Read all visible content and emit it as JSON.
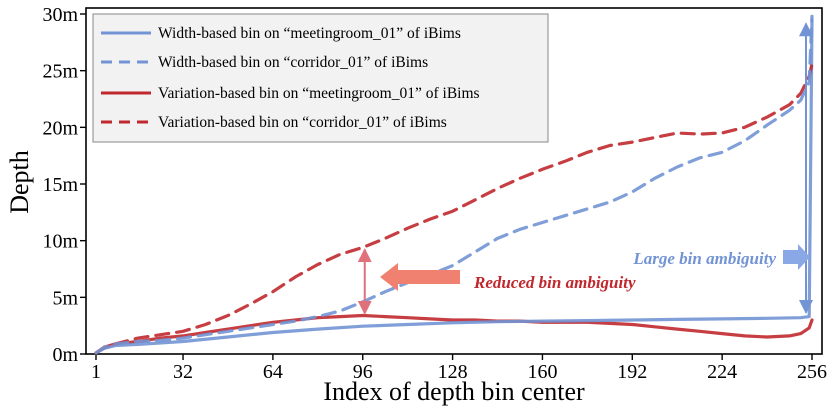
{
  "chart_data": {
    "type": "line",
    "xlabel": "Index of depth bin center",
    "ylabel": "Depth",
    "xlim": [
      1,
      256
    ],
    "ylim": [
      0,
      30
    ],
    "xticks": [
      1,
      32,
      64,
      96,
      128,
      160,
      192,
      224,
      256
    ],
    "yticks": [
      0,
      5,
      10,
      15,
      20,
      25,
      30
    ],
    "ytick_labels": [
      "0m",
      "5m",
      "10m",
      "15m",
      "20m",
      "25m",
      "30m"
    ],
    "legend_location": "top-left",
    "series": [
      {
        "name": "Width-based bin on “meetingroom_01” of iBims",
        "color": "#7294d4",
        "dashed": false,
        "x": [
          1,
          4,
          8,
          16,
          32,
          48,
          64,
          80,
          96,
          112,
          128,
          144,
          160,
          176,
          192,
          208,
          224,
          240,
          252,
          255,
          256
        ],
        "y": [
          0.1,
          0.5,
          0.75,
          0.85,
          1.1,
          1.5,
          1.9,
          2.2,
          2.45,
          2.6,
          2.75,
          2.85,
          2.9,
          2.95,
          3.0,
          3.05,
          3.1,
          3.15,
          3.2,
          3.3,
          29.5
        ]
      },
      {
        "name": "Width-based bin on “corridor_01” of iBims",
        "color": "#7294d4",
        "dashed": true,
        "x": [
          1,
          4,
          8,
          16,
          24,
          32,
          40,
          48,
          56,
          64,
          72,
          80,
          88,
          96,
          104,
          112,
          120,
          128,
          136,
          144,
          152,
          160,
          168,
          176,
          184,
          192,
          200,
          208,
          216,
          224,
          232,
          240,
          248,
          252,
          255,
          256
        ],
        "y": [
          0.1,
          0.6,
          0.9,
          1.1,
          1.2,
          1.4,
          1.7,
          2.0,
          2.3,
          2.6,
          2.9,
          3.3,
          3.8,
          4.6,
          5.5,
          6.3,
          7.0,
          7.8,
          9.0,
          10.2,
          11.0,
          11.6,
          12.2,
          12.8,
          13.4,
          14.3,
          15.5,
          16.5,
          17.3,
          17.8,
          18.8,
          20.2,
          21.5,
          22.4,
          24.0,
          29.8
        ]
      },
      {
        "name": "Variation-based bin on “meetingroom_01” of iBims",
        "color": "#c0282d",
        "dashed": false,
        "x": [
          1,
          4,
          8,
          16,
          24,
          32,
          40,
          48,
          56,
          64,
          72,
          80,
          88,
          96,
          104,
          112,
          120,
          128,
          136,
          144,
          152,
          160,
          168,
          176,
          184,
          192,
          200,
          208,
          216,
          224,
          232,
          240,
          248,
          252,
          255,
          256
        ],
        "y": [
          0.1,
          0.6,
          0.9,
          1.1,
          1.4,
          1.6,
          1.9,
          2.2,
          2.5,
          2.8,
          3.0,
          3.2,
          3.3,
          3.4,
          3.3,
          3.2,
          3.1,
          3.0,
          3.0,
          2.9,
          2.9,
          2.8,
          2.8,
          2.8,
          2.7,
          2.6,
          2.4,
          2.2,
          2.0,
          1.8,
          1.6,
          1.5,
          1.6,
          1.8,
          2.3,
          3.0
        ]
      },
      {
        "name": "Variation-based bin on “corridor_01” of iBims",
        "color": "#c0282d",
        "dashed": true,
        "x": [
          1,
          4,
          8,
          16,
          24,
          32,
          40,
          48,
          56,
          64,
          72,
          80,
          88,
          96,
          104,
          112,
          120,
          128,
          136,
          144,
          152,
          160,
          168,
          176,
          184,
          192,
          200,
          208,
          216,
          224,
          232,
          240,
          248,
          252,
          255,
          256
        ],
        "y": [
          0.1,
          0.6,
          0.9,
          1.4,
          1.7,
          2.0,
          2.6,
          3.4,
          4.4,
          5.5,
          6.8,
          7.9,
          8.8,
          9.4,
          10.2,
          11.1,
          11.9,
          12.6,
          13.6,
          14.6,
          15.5,
          16.3,
          17.0,
          17.8,
          18.4,
          18.7,
          19.1,
          19.5,
          19.4,
          19.5,
          20.0,
          20.9,
          22.0,
          23.0,
          24.5,
          25.6
        ]
      }
    ],
    "annotations": [
      {
        "text": "Large bin ambiguity",
        "color": "#7294d4",
        "arrow": "right",
        "double_arrow_x": 256,
        "double_arrow_y": [
          3.3,
          29.5
        ]
      },
      {
        "text": "Reduced bin ambiguity",
        "color": "#c0282d",
        "arrow": "left",
        "double_arrow_x": 96,
        "double_arrow_y": [
          3.4,
          9.4
        ]
      }
    ]
  }
}
